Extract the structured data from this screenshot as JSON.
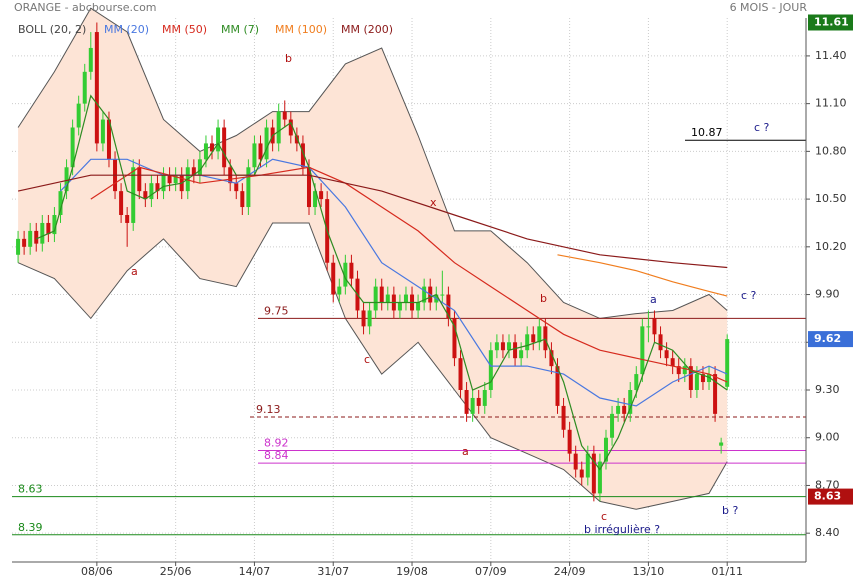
{
  "chart_data": {
    "type": "candlestick",
    "title": "ORANGE - abcbourse.com",
    "period": "6 MOIS - JOUR",
    "xlim": [
      -1,
      130
    ],
    "ylim": [
      8.2,
      11.72
    ],
    "xticks": [
      {
        "value": 13,
        "label": "08/06"
      },
      {
        "value": 26,
        "label": "25/06"
      },
      {
        "value": 39,
        "label": "14/07"
      },
      {
        "value": 52,
        "label": "31/07"
      },
      {
        "value": 65,
        "label": "19/08"
      },
      {
        "value": 78,
        "label": "07/09"
      },
      {
        "value": 91,
        "label": "24/09"
      },
      {
        "value": 104,
        "label": "13/10"
      },
      {
        "value": 117,
        "label": "01/11"
      }
    ],
    "yticks": [
      {
        "value": 8.4,
        "label": "8.40"
      },
      {
        "value": 8.7,
        "label": "8.70"
      },
      {
        "value": 9.0,
        "label": "9.00"
      },
      {
        "value": 9.3,
        "label": "9.30"
      },
      {
        "value": 9.6,
        "label": "9.60"
      },
      {
        "value": 9.9,
        "label": "9.90"
      },
      {
        "value": 10.2,
        "label": "10.20"
      },
      {
        "value": 10.5,
        "label": "10.50"
      },
      {
        "value": 10.8,
        "label": "10.80"
      },
      {
        "value": 11.1,
        "label": "11.10"
      },
      {
        "value": 11.4,
        "label": "11.40"
      }
    ],
    "grid": true,
    "up_color": "#33cc33",
    "down_color": "#cc1111",
    "candles": [
      [
        10.15,
        10.3,
        10.1,
        10.25
      ],
      [
        10.25,
        10.3,
        10.15,
        10.2
      ],
      [
        10.2,
        10.35,
        10.15,
        10.3
      ],
      [
        10.3,
        10.35,
        10.17,
        10.22
      ],
      [
        10.22,
        10.4,
        10.17,
        10.35
      ],
      [
        10.35,
        10.4,
        10.23,
        10.28
      ],
      [
        10.28,
        10.45,
        10.23,
        10.4
      ],
      [
        10.4,
        10.6,
        10.35,
        10.55
      ],
      [
        10.55,
        10.75,
        10.5,
        10.7
      ],
      [
        10.7,
        11.0,
        10.65,
        10.95
      ],
      [
        10.95,
        11.15,
        10.9,
        11.1
      ],
      [
        11.1,
        11.35,
        11.05,
        11.3
      ],
      [
        11.3,
        11.55,
        11.25,
        11.45
      ],
      [
        11.55,
        11.61,
        10.8,
        10.85
      ],
      [
        10.85,
        11.05,
        10.8,
        11.0
      ],
      [
        11.0,
        11.05,
        10.7,
        10.75
      ],
      [
        10.75,
        10.8,
        10.5,
        10.55
      ],
      [
        10.55,
        10.6,
        10.35,
        10.4
      ],
      [
        10.4,
        10.45,
        10.2,
        10.35
      ],
      [
        10.35,
        10.75,
        10.3,
        10.7
      ],
      [
        10.7,
        10.75,
        10.5,
        10.55
      ],
      [
        10.55,
        10.6,
        10.45,
        10.5
      ],
      [
        10.5,
        10.65,
        10.45,
        10.6
      ],
      [
        10.6,
        10.65,
        10.5,
        10.55
      ],
      [
        10.55,
        10.7,
        10.5,
        10.65
      ],
      [
        10.65,
        10.7,
        10.55,
        10.6
      ],
      [
        10.6,
        10.7,
        10.55,
        10.65
      ],
      [
        10.65,
        10.7,
        10.5,
        10.55
      ],
      [
        10.55,
        10.75,
        10.5,
        10.7
      ],
      [
        10.7,
        10.75,
        10.6,
        10.65
      ],
      [
        10.65,
        10.8,
        10.6,
        10.75
      ],
      [
        10.75,
        10.9,
        10.7,
        10.85
      ],
      [
        10.85,
        10.9,
        10.75,
        10.8
      ],
      [
        10.8,
        11.0,
        10.75,
        10.95
      ],
      [
        10.95,
        11.0,
        10.65,
        10.7
      ],
      [
        10.7,
        10.75,
        10.55,
        10.6
      ],
      [
        10.6,
        10.65,
        10.5,
        10.55
      ],
      [
        10.55,
        10.6,
        10.4,
        10.45
      ],
      [
        10.45,
        10.75,
        10.4,
        10.7
      ],
      [
        10.7,
        10.9,
        10.65,
        10.85
      ],
      [
        10.85,
        10.9,
        10.7,
        10.75
      ],
      [
        10.75,
        11.0,
        10.7,
        10.95
      ],
      [
        10.95,
        11.0,
        10.8,
        10.85
      ],
      [
        10.85,
        11.1,
        10.8,
        11.05
      ],
      [
        11.05,
        11.12,
        10.95,
        11.0
      ],
      [
        11.0,
        11.05,
        10.85,
        10.9
      ],
      [
        10.9,
        10.95,
        10.8,
        10.85
      ],
      [
        10.85,
        10.9,
        10.65,
        10.7
      ],
      [
        10.7,
        10.75,
        10.4,
        10.45
      ],
      [
        10.45,
        10.6,
        10.4,
        10.55
      ],
      [
        10.55,
        10.6,
        10.45,
        10.5
      ],
      [
        10.5,
        10.55,
        10.05,
        10.1
      ],
      [
        10.1,
        10.15,
        9.85,
        9.9
      ],
      [
        9.9,
        10.0,
        9.85,
        9.95
      ],
      [
        9.95,
        10.15,
        9.9,
        10.1
      ],
      [
        10.1,
        10.15,
        9.95,
        10.0
      ],
      [
        10.0,
        10.05,
        9.75,
        9.8
      ],
      [
        9.8,
        9.85,
        9.65,
        9.7
      ],
      [
        9.7,
        9.85,
        9.65,
        9.8
      ],
      [
        9.8,
        10.0,
        9.75,
        9.95
      ],
      [
        9.95,
        10.0,
        9.8,
        9.85
      ],
      [
        9.85,
        9.95,
        9.8,
        9.9
      ],
      [
        9.9,
        9.95,
        9.75,
        9.8
      ],
      [
        9.8,
        9.9,
        9.75,
        9.85
      ],
      [
        9.85,
        9.95,
        9.8,
        9.9
      ],
      [
        9.9,
        9.95,
        9.75,
        9.8
      ],
      [
        9.8,
        9.9,
        9.75,
        9.85
      ],
      [
        9.85,
        10.0,
        9.8,
        9.95
      ],
      [
        9.95,
        10.0,
        9.8,
        9.85
      ],
      [
        9.85,
        9.95,
        9.8,
        9.9
      ],
      [
        9.9,
        10.05,
        9.85,
        9.9
      ],
      [
        9.9,
        9.95,
        9.7,
        9.75
      ],
      [
        9.75,
        9.8,
        9.45,
        9.5
      ],
      [
        9.5,
        9.55,
        9.25,
        9.3
      ],
      [
        9.3,
        9.35,
        9.1,
        9.15
      ],
      [
        9.15,
        9.3,
        9.1,
        9.25
      ],
      [
        9.25,
        9.3,
        9.15,
        9.2
      ],
      [
        9.2,
        9.35,
        9.15,
        9.3
      ],
      [
        9.3,
        9.6,
        9.25,
        9.55
      ],
      [
        9.55,
        9.65,
        9.5,
        9.6
      ],
      [
        9.6,
        9.65,
        9.5,
        9.55
      ],
      [
        9.55,
        9.65,
        9.5,
        9.6
      ],
      [
        9.6,
        9.65,
        9.45,
        9.5
      ],
      [
        9.5,
        9.6,
        9.45,
        9.55
      ],
      [
        9.55,
        9.7,
        9.5,
        9.65
      ],
      [
        9.65,
        9.7,
        9.55,
        9.6
      ],
      [
        9.6,
        9.75,
        9.55,
        9.7
      ],
      [
        9.7,
        9.75,
        9.5,
        9.55
      ],
      [
        9.55,
        9.6,
        9.4,
        9.45
      ],
      [
        9.45,
        9.5,
        9.15,
        9.2
      ],
      [
        9.2,
        9.25,
        9.0,
        9.05
      ],
      [
        9.05,
        9.1,
        8.85,
        8.9
      ],
      [
        8.9,
        8.95,
        8.75,
        8.8
      ],
      [
        8.8,
        8.85,
        8.7,
        8.75
      ],
      [
        8.75,
        8.95,
        8.7,
        8.9
      ],
      [
        8.9,
        8.95,
        8.6,
        8.65
      ],
      [
        8.65,
        8.9,
        8.6,
        8.85
      ],
      [
        8.85,
        9.05,
        8.8,
        9.0
      ],
      [
        9.0,
        9.2,
        8.95,
        9.15
      ],
      [
        9.15,
        9.25,
        9.1,
        9.2
      ],
      [
        9.2,
        9.25,
        9.1,
        9.15
      ],
      [
        9.15,
        9.35,
        9.1,
        9.3
      ],
      [
        9.3,
        9.45,
        9.25,
        9.4
      ],
      [
        9.4,
        9.75,
        9.35,
        9.7
      ],
      [
        9.7,
        9.8,
        9.6,
        9.7
      ],
      [
        9.75,
        9.8,
        9.6,
        9.65
      ],
      [
        9.65,
        9.7,
        9.5,
        9.55
      ],
      [
        9.55,
        9.6,
        9.45,
        9.5
      ],
      [
        9.5,
        9.55,
        9.4,
        9.45
      ],
      [
        9.45,
        9.5,
        9.35,
        9.4
      ],
      [
        9.4,
        9.5,
        9.35,
        9.45
      ],
      [
        9.45,
        9.5,
        9.25,
        9.3
      ],
      [
        9.3,
        9.45,
        9.25,
        9.4
      ],
      [
        9.4,
        9.45,
        9.3,
        9.35
      ],
      [
        9.35,
        9.45,
        9.3,
        9.4
      ],
      [
        9.4,
        9.45,
        9.1,
        9.15
      ],
      [
        8.95,
        9.0,
        8.9,
        8.97
      ],
      [
        9.32,
        9.65,
        9.3,
        9.62
      ]
    ],
    "bollinger": {
      "name": "BOLL (20, 2)",
      "color": "#555555",
      "fill": "#fde4d6",
      "x": [
        0,
        6,
        12,
        18,
        24,
        30,
        36,
        42,
        48,
        54,
        60,
        66,
        72,
        78,
        84,
        90,
        96,
        102,
        108,
        114,
        117
      ],
      "upper": [
        10.95,
        11.3,
        11.7,
        11.55,
        11.0,
        10.8,
        10.9,
        11.05,
        11.05,
        11.35,
        11.45,
        10.9,
        10.3,
        10.3,
        10.1,
        9.85,
        9.75,
        9.78,
        9.8,
        9.9,
        9.8
      ],
      "lower": [
        10.1,
        10.0,
        9.75,
        10.05,
        10.25,
        10.0,
        9.95,
        10.35,
        10.35,
        9.75,
        9.4,
        9.6,
        9.3,
        9.0,
        8.9,
        8.8,
        8.6,
        8.55,
        8.6,
        8.65,
        8.85
      ]
    },
    "series": [
      {
        "name": "MM (20)",
        "color": "#4a78e0",
        "x": [
          7,
          12,
          18,
          24,
          30,
          36,
          42,
          48,
          54,
          60,
          66,
          72,
          78,
          84,
          90,
          96,
          102,
          108,
          114,
          117
        ],
        "values": [
          10.55,
          10.75,
          10.75,
          10.65,
          10.65,
          10.6,
          10.75,
          10.7,
          10.45,
          10.1,
          9.95,
          9.8,
          9.45,
          9.45,
          9.4,
          9.25,
          9.2,
          9.35,
          9.45,
          9.4
        ]
      },
      {
        "name": "MM (50)",
        "color": "#d62a1e",
        "x": [
          12,
          20,
          30,
          40,
          48,
          54,
          60,
          66,
          72,
          78,
          84,
          90,
          96,
          102,
          108,
          114,
          117
        ],
        "values": [
          10.5,
          10.7,
          10.6,
          10.65,
          10.7,
          10.6,
          10.45,
          10.3,
          10.1,
          9.95,
          9.8,
          9.65,
          9.55,
          9.5,
          9.45,
          9.4,
          9.35
        ]
      },
      {
        "name": "MM (7)",
        "color": "#2e8b22",
        "x": [
          3,
          6,
          9,
          12,
          15,
          18,
          21,
          24,
          27,
          30,
          33,
          36,
          39,
          42,
          45,
          48,
          51,
          54,
          57,
          60,
          63,
          66,
          69,
          72,
          75,
          78,
          81,
          84,
          87,
          90,
          93,
          96,
          99,
          102,
          105,
          108,
          111,
          114,
          117
        ],
        "values": [
          10.25,
          10.3,
          10.7,
          11.15,
          11.0,
          10.55,
          10.5,
          10.58,
          10.6,
          10.68,
          10.85,
          10.65,
          10.65,
          10.9,
          10.98,
          10.7,
          10.3,
          10.0,
          9.85,
          9.85,
          9.85,
          9.85,
          9.9,
          9.7,
          9.3,
          9.35,
          9.55,
          9.58,
          9.62,
          9.35,
          8.95,
          8.8,
          9.0,
          9.28,
          9.6,
          9.55,
          9.42,
          9.38,
          9.3
        ]
      },
      {
        "name": "MM (100)",
        "color": "#f07d1e",
        "x": [
          89,
          96,
          102,
          108,
          114,
          117
        ],
        "values": [
          10.15,
          10.1,
          10.05,
          9.98,
          9.92,
          9.89
        ]
      },
      {
        "name": "MM (200)",
        "color": "#8b1a1a",
        "x": [
          0,
          12,
          24,
          36,
          48,
          60,
          72,
          84,
          96,
          108,
          117
        ],
        "values": [
          10.55,
          10.65,
          10.65,
          10.65,
          10.65,
          10.55,
          10.4,
          10.25,
          10.15,
          10.1,
          10.07
        ]
      }
    ],
    "levels": [
      {
        "value": 10.87,
        "color": "#000000"
      },
      {
        "value": 9.75,
        "color": "#8b1a1a"
      },
      {
        "value": 9.13,
        "color": "#8b1a1a",
        "dashed": true
      },
      {
        "value": 8.92,
        "color": "#cc33cc"
      },
      {
        "value": 8.84,
        "color": "#cc33cc"
      },
      {
        "value": 8.63,
        "color": "#1a8a1a"
      },
      {
        "value": 8.39,
        "color": "#1a8a1a"
      }
    ],
    "badges": [
      {
        "value": 11.61,
        "color": "#1a7a1a"
      },
      {
        "value": 9.62,
        "color": "#3a6fd8"
      },
      {
        "value": 8.63,
        "color": "#b01010"
      }
    ],
    "annotations": [
      {
        "text": "b",
        "color": "#b01010"
      },
      {
        "text": "a",
        "color": "#b01010"
      },
      {
        "text": "c",
        "color": "#b01010"
      },
      {
        "text": "x",
        "color": "#b01010"
      },
      {
        "text": "b",
        "color": "#b01010"
      },
      {
        "text": "a",
        "color": "#1a1a8a"
      },
      {
        "text": "a",
        "color": "#b01010"
      },
      {
        "text": "c",
        "color": "#b01010"
      },
      {
        "text": "b irrégulière ?",
        "color": "#1a1a8a"
      },
      {
        "text": "b ?",
        "color": "#1a1a8a"
      },
      {
        "text": "c ?",
        "color": "#1a1a8a"
      },
      {
        "text": "c ?",
        "color": "#1a1a8a"
      }
    ]
  }
}
